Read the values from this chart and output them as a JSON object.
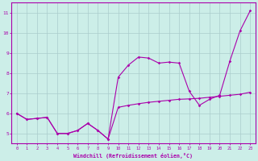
{
  "xlabel": "Windchill (Refroidissement éolien,°C)",
  "ylabel": "",
  "background_color": "#cceee8",
  "line_color": "#aa00aa",
  "grid_color": "#aacccc",
  "xlim": [
    -0.5,
    23.5
  ],
  "ylim": [
    4.5,
    11.5
  ],
  "yticks": [
    5,
    6,
    7,
    8,
    9,
    10,
    11
  ],
  "xticks": [
    0,
    1,
    2,
    3,
    4,
    5,
    6,
    7,
    8,
    9,
    10,
    11,
    12,
    13,
    14,
    15,
    16,
    17,
    18,
    19,
    20,
    21,
    22,
    23
  ],
  "line1_x": [
    0,
    1,
    2,
    3,
    4,
    5,
    6,
    7,
    8,
    9,
    10,
    11,
    12,
    13,
    14,
    15,
    16,
    17,
    18,
    19,
    20,
    21,
    22,
    23
  ],
  "line1_y": [
    6.0,
    5.7,
    5.75,
    5.8,
    5.0,
    5.0,
    5.15,
    5.5,
    5.15,
    4.72,
    6.3,
    6.4,
    6.48,
    6.55,
    6.6,
    6.65,
    6.7,
    6.72,
    6.75,
    6.8,
    6.85,
    6.9,
    6.95,
    7.05
  ],
  "line2_x": [
    0,
    1,
    2,
    3,
    4,
    5,
    6,
    7,
    8,
    9,
    10,
    11,
    12,
    13,
    14,
    15,
    16,
    17,
    18,
    19,
    20,
    21,
    22,
    23
  ],
  "line2_y": [
    6.0,
    5.7,
    5.75,
    5.8,
    5.0,
    5.0,
    5.15,
    5.5,
    5.15,
    4.72,
    7.8,
    8.4,
    8.8,
    8.75,
    8.5,
    8.55,
    8.5,
    7.1,
    6.4,
    6.7,
    6.9,
    8.6,
    10.1,
    11.1
  ]
}
